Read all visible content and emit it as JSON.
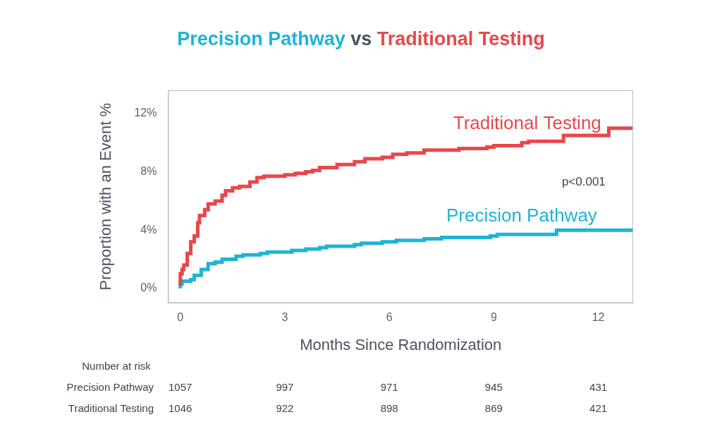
{
  "chart_data": {
    "type": "line",
    "title": "Precision Pathway vs Traditional Testing",
    "x_label": "Months Since Randomization",
    "y_label": "Proportion with an Event %",
    "xlim": [
      -0.35,
      13
    ],
    "xticks": [
      0,
      3,
      6,
      9,
      12
    ],
    "ylim": [
      -1,
      13.6
    ],
    "yticks": [
      {
        "value": 0,
        "label": "0%"
      },
      {
        "value": 4,
        "label": "4%"
      },
      {
        "value": 8,
        "label": "8%"
      },
      {
        "value": 12,
        "label": "12%"
      }
    ],
    "grid": false,
    "line_style": "step",
    "series": [
      {
        "name": "Traditional Testing",
        "color": "#e8474c",
        "x": [
          0,
          0.05,
          0.1,
          0.2,
          0.3,
          0.4,
          0.5,
          0.55,
          0.7,
          0.8,
          1.0,
          1.2,
          1.3,
          1.5,
          1.7,
          2.0,
          2.2,
          2.4,
          3.0,
          3.3,
          3.6,
          3.8,
          4.0,
          4.5,
          5.0,
          5.3,
          5.8,
          6.1,
          6.5,
          7.0,
          7.2,
          8.0,
          8.8,
          9.0,
          9.8,
          10.0,
          10.5,
          11.0,
          12.3,
          12.6,
          13.0
        ],
        "values": [
          0.2,
          1.0,
          1.3,
          1.6,
          2.4,
          3.2,
          3.6,
          4.5,
          5.0,
          5.4,
          5.8,
          6.0,
          6.4,
          6.7,
          6.9,
          7.0,
          7.3,
          7.6,
          7.7,
          7.8,
          7.9,
          8.0,
          8.1,
          8.3,
          8.5,
          8.7,
          8.9,
          9.0,
          9.2,
          9.3,
          9.5,
          9.5,
          9.6,
          9.7,
          9.8,
          10.0,
          10.1,
          10.1,
          10.5,
          11.0,
          11.0
        ]
      },
      {
        "name": "Precision Pathway",
        "color": "#1eb4d4",
        "x": [
          0,
          0.05,
          0.3,
          0.4,
          0.6,
          0.8,
          1.0,
          1.2,
          1.6,
          1.8,
          2.3,
          2.5,
          3.2,
          3.6,
          4.0,
          4.2,
          5.0,
          5.2,
          5.8,
          6.2,
          7.0,
          7.5,
          8.9,
          9.1,
          10.8,
          12.1,
          13.0
        ],
        "values": [
          0,
          0.3,
          0.5,
          0.6,
          0.9,
          1.3,
          1.7,
          1.8,
          2.0,
          2.2,
          2.3,
          2.4,
          2.5,
          2.6,
          2.7,
          2.8,
          2.9,
          3.0,
          3.1,
          3.2,
          3.3,
          3.4,
          3.5,
          3.6,
          3.7,
          4.0,
          4.0
        ]
      }
    ],
    "annotations": [
      {
        "text": "Traditional Testing",
        "x": 9.96,
        "y": 11.26,
        "color": "#e8474c"
      },
      {
        "text": "Precision Pathway",
        "x": 9.8,
        "y": 4.93,
        "color": "#1eb4d4"
      },
      {
        "text": "p<0.001",
        "x": 11.58,
        "y": 7.3,
        "color": "#3d4450"
      }
    ],
    "number_at_risk": {
      "title": "Number at risk",
      "times": [
        0,
        3,
        6,
        9,
        12
      ],
      "rows": [
        {
          "name": "Precision Pathway",
          "values": [
            1057,
            997,
            971,
            945,
            431
          ]
        },
        {
          "name": "Traditional Testing",
          "values": [
            1046,
            922,
            898,
            869,
            421
          ]
        }
      ]
    }
  }
}
